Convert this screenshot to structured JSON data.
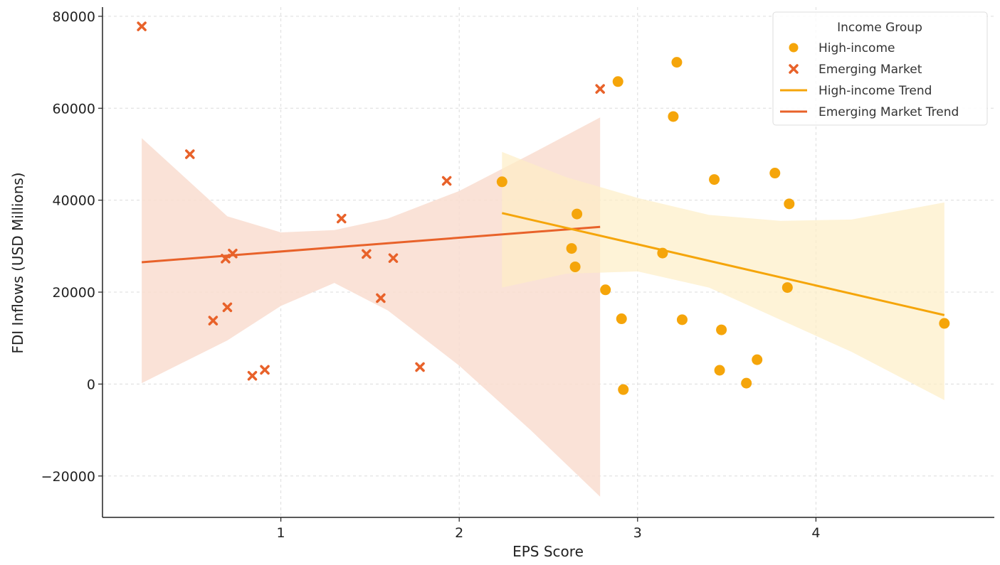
{
  "chart_data": {
    "type": "scatter",
    "xlabel": "EPS Score",
    "ylabel": "FDI Inflows (USD Millions)",
    "xlim": [
      0,
      5
    ],
    "ylim": [
      -29000,
      82000
    ],
    "xticks": [
      1,
      2,
      3,
      4
    ],
    "yticks": [
      -20000,
      0,
      20000,
      40000,
      60000,
      80000
    ],
    "grid": true,
    "legend": {
      "title": "Income Group",
      "placement": "top-right",
      "entries": [
        "High-income",
        "Emerging Market",
        "High-income Trend",
        "Emerging Market Trend"
      ]
    },
    "colors": {
      "high_income": "#f5a50a",
      "emerging": "#e8622a",
      "high_income_band": "#fdeec6",
      "emerging_band": "#f9ddd0"
    },
    "series": [
      {
        "name": "High-income",
        "marker": "circle",
        "points": [
          [
            2.24,
            44000
          ],
          [
            2.63,
            29500
          ],
          [
            2.65,
            25500
          ],
          [
            2.66,
            37000
          ],
          [
            2.82,
            20500
          ],
          [
            2.89,
            65800
          ],
          [
            2.91,
            14200
          ],
          [
            2.92,
            -1200
          ],
          [
            3.14,
            28500
          ],
          [
            3.2,
            58200
          ],
          [
            3.22,
            70000
          ],
          [
            3.25,
            14000
          ],
          [
            3.43,
            44500
          ],
          [
            3.46,
            3000
          ],
          [
            3.47,
            11800
          ],
          [
            3.61,
            200
          ],
          [
            3.67,
            5300
          ],
          [
            3.77,
            45900
          ],
          [
            3.84,
            21000
          ],
          [
            3.85,
            39200
          ],
          [
            4.72,
            13200
          ]
        ]
      },
      {
        "name": "Emerging Market",
        "marker": "x",
        "points": [
          [
            0.22,
            77800
          ],
          [
            0.49,
            50000
          ],
          [
            0.62,
            13800
          ],
          [
            0.69,
            27300
          ],
          [
            0.7,
            16700
          ],
          [
            0.73,
            28400
          ],
          [
            0.84,
            1800
          ],
          [
            0.91,
            3100
          ],
          [
            1.34,
            36000
          ],
          [
            1.48,
            28300
          ],
          [
            1.56,
            18700
          ],
          [
            1.63,
            27400
          ],
          [
            1.78,
            3700
          ],
          [
            1.93,
            44200
          ],
          [
            2.79,
            64200
          ]
        ]
      },
      {
        "name": "High-income Trend",
        "line": [
          [
            2.24,
            37200
          ],
          [
            4.72,
            15000
          ]
        ],
        "band_upper": [
          [
            2.24,
            50500
          ],
          [
            2.6,
            45000
          ],
          [
            3.0,
            40500
          ],
          [
            3.4,
            36800
          ],
          [
            3.8,
            35500
          ],
          [
            4.2,
            35800
          ],
          [
            4.72,
            39500
          ]
        ],
        "band_lower": [
          [
            2.24,
            21000
          ],
          [
            2.6,
            24000
          ],
          [
            3.0,
            24500
          ],
          [
            3.4,
            21000
          ],
          [
            3.8,
            14000
          ],
          [
            4.2,
            7000
          ],
          [
            4.72,
            -3500
          ]
        ]
      },
      {
        "name": "Emerging Market Trend",
        "line": [
          [
            0.22,
            26500
          ],
          [
            2.79,
            34200
          ]
        ],
        "band_upper": [
          [
            0.22,
            53500
          ],
          [
            0.7,
            36500
          ],
          [
            1.0,
            33000
          ],
          [
            1.3,
            33500
          ],
          [
            1.6,
            36000
          ],
          [
            2.0,
            42000
          ],
          [
            2.4,
            50000
          ],
          [
            2.79,
            58000
          ]
        ],
        "band_lower": [
          [
            0.22,
            200
          ],
          [
            0.7,
            9500
          ],
          [
            1.0,
            17000
          ],
          [
            1.3,
            22000
          ],
          [
            1.6,
            16000
          ],
          [
            2.0,
            4000
          ],
          [
            2.4,
            -10000
          ],
          [
            2.79,
            -24500
          ]
        ]
      }
    ]
  }
}
